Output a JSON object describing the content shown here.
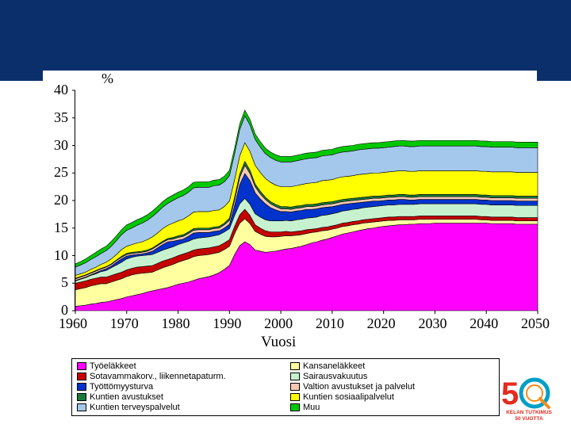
{
  "header": {
    "banner_color": "#0a2f6b"
  },
  "chart": {
    "type": "area-stacked",
    "y_unit": "%",
    "x_title": "Vuosi",
    "xlim": [
      1960,
      2050
    ],
    "ylim": [
      0,
      40
    ],
    "xtick_step": 10,
    "ytick_step": 5,
    "xticks": [
      1960,
      1970,
      1980,
      1990,
      2000,
      2010,
      2020,
      2030,
      2040,
      2050
    ],
    "yticks": [
      0,
      5,
      10,
      15,
      20,
      25,
      30,
      35,
      40
    ],
    "background_color": "#ffffff",
    "axis_color": "#000000",
    "tick_fontsize": 18,
    "series_order": [
      "tyoelakkeet",
      "kansanelakkeet",
      "sotavamma",
      "sairaus",
      "tyottomyys",
      "valtion",
      "kuntien_av",
      "kuntien_sos",
      "kuntien_terv",
      "muu"
    ],
    "series": {
      "tyoelakkeet": {
        "label": "Työeläkkeet",
        "color": "#ff00ff",
        "values": [
          0.8,
          0.9,
          1.0,
          1.2,
          1.3,
          1.5,
          1.6,
          1.8,
          2.0,
          2.2,
          2.5,
          2.7,
          2.9,
          3.1,
          3.4,
          3.6,
          3.8,
          4.0,
          4.2,
          4.5,
          4.8,
          5.0,
          5.2,
          5.5,
          5.8,
          6.0,
          6.2,
          6.5,
          6.9,
          7.5,
          8.2,
          10.2,
          11.8,
          12.5,
          12.0,
          11.0,
          10.8,
          10.6,
          10.7,
          10.8,
          11.0,
          11.2,
          11.3,
          11.5,
          11.7,
          12.0,
          12.3,
          12.5,
          12.8,
          13.0,
          13.3,
          13.6,
          13.9,
          14.1,
          14.3,
          14.5,
          14.7,
          14.9,
          15.0,
          15.2,
          15.3,
          15.4,
          15.5,
          15.6,
          15.6,
          15.7,
          15.7,
          15.8,
          15.8,
          15.8,
          15.9,
          15.9,
          15.9,
          15.9,
          15.9,
          15.9,
          15.9,
          15.9,
          15.9,
          15.9,
          15.9,
          15.8,
          15.8,
          15.8,
          15.8,
          15.8,
          15.7,
          15.7,
          15.7,
          15.7,
          15.7
        ]
      },
      "kansanelakkeet": {
        "label": "Kansaneläkkeet",
        "color": "#ffffa0",
        "values": [
          3.0,
          3.1,
          3.2,
          3.3,
          3.4,
          3.4,
          3.3,
          3.4,
          3.5,
          3.6,
          3.7,
          3.8,
          3.8,
          3.7,
          3.5,
          3.4,
          3.6,
          3.8,
          3.9,
          3.9,
          4.0,
          4.1,
          4.2,
          4.3,
          4.2,
          4.1,
          4.0,
          3.9,
          3.7,
          3.6,
          3.5,
          3.8,
          4.1,
          4.2,
          3.8,
          3.4,
          3.1,
          2.9,
          2.7,
          2.6,
          2.5,
          2.4,
          2.3,
          2.2,
          2.1,
          2.0,
          1.9,
          1.8,
          1.7,
          1.6,
          1.5,
          1.4,
          1.4,
          1.3,
          1.3,
          1.2,
          1.2,
          1.1,
          1.1,
          1.0,
          1.0,
          1.0,
          0.9,
          0.9,
          0.9,
          0.8,
          0.8,
          0.8,
          0.8,
          0.8,
          0.7,
          0.7,
          0.7,
          0.7,
          0.7,
          0.7,
          0.7,
          0.7,
          0.7,
          0.6,
          0.6,
          0.6,
          0.6,
          0.6,
          0.6,
          0.6,
          0.6,
          0.6,
          0.6,
          0.6,
          0.6
        ]
      },
      "sotavamma": {
        "label": "Sotavammakorv., liikennetapaturm.",
        "color": "#c40000",
        "values": [
          1.2,
          1.2,
          1.2,
          1.2,
          1.2,
          1.2,
          1.2,
          1.2,
          1.2,
          1.2,
          1.2,
          1.2,
          1.2,
          1.2,
          1.2,
          1.2,
          1.2,
          1.2,
          1.2,
          1.2,
          1.2,
          1.2,
          1.2,
          1.2,
          1.2,
          1.2,
          1.2,
          1.2,
          1.2,
          1.2,
          1.2,
          1.3,
          1.5,
          1.7,
          1.5,
          1.2,
          1.1,
          1.0,
          0.9,
          0.9,
          0.8,
          0.8,
          0.7,
          0.7,
          0.7,
          0.7,
          0.6,
          0.6,
          0.6,
          0.6,
          0.6,
          0.6,
          0.6,
          0.6,
          0.6,
          0.6,
          0.6,
          0.6,
          0.6,
          0.6,
          0.6,
          0.6,
          0.6,
          0.6,
          0.6,
          0.6,
          0.6,
          0.6,
          0.6,
          0.6,
          0.6,
          0.6,
          0.6,
          0.6,
          0.6,
          0.6,
          0.6,
          0.6,
          0.6,
          0.6,
          0.6,
          0.6,
          0.6,
          0.6,
          0.6,
          0.6,
          0.6,
          0.6,
          0.6,
          0.6,
          0.6
        ]
      },
      "sairaus": {
        "label": "Sairausvakuutus",
        "color": "#c7f2d0",
        "values": [
          0.4,
          0.5,
          0.6,
          0.7,
          0.8,
          1.0,
          1.2,
          1.4,
          1.6,
          1.8,
          2.0,
          2.0,
          2.0,
          2.0,
          2.0,
          2.0,
          2.0,
          2.0,
          2.0,
          2.0,
          2.0,
          2.0,
          2.0,
          2.0,
          2.0,
          2.0,
          2.0,
          2.0,
          2.0,
          2.0,
          2.0,
          2.0,
          2.0,
          2.0,
          2.0,
          2.0,
          2.0,
          2.0,
          2.0,
          2.0,
          2.0,
          2.0,
          2.0,
          2.1,
          2.1,
          2.1,
          2.1,
          2.1,
          2.2,
          2.2,
          2.2,
          2.2,
          2.2,
          2.2,
          2.2,
          2.2,
          2.2,
          2.2,
          2.2,
          2.2,
          2.2,
          2.2,
          2.2,
          2.2,
          2.2,
          2.2,
          2.2,
          2.2,
          2.2,
          2.2,
          2.2,
          2.2,
          2.2,
          2.2,
          2.2,
          2.2,
          2.2,
          2.2,
          2.2,
          2.2,
          2.2,
          2.2,
          2.2,
          2.2,
          2.2,
          2.2,
          2.2,
          2.2,
          2.2,
          2.2,
          2.2
        ]
      },
      "tyottomyys": {
        "label": "Työttömyysturva",
        "color": "#0033cc",
        "values": [
          0.1,
          0.1,
          0.1,
          0.1,
          0.2,
          0.2,
          0.3,
          0.3,
          0.5,
          0.6,
          0.5,
          0.4,
          0.3,
          0.3,
          0.4,
          0.6,
          0.8,
          1.0,
          1.2,
          1.0,
          0.8,
          0.7,
          0.9,
          1.1,
          1.0,
          0.9,
          0.8,
          0.8,
          0.7,
          0.7,
          0.8,
          1.8,
          3.5,
          4.5,
          4.3,
          3.8,
          3.3,
          2.9,
          2.4,
          2.0,
          1.7,
          1.6,
          1.6,
          1.6,
          1.6,
          1.6,
          1.5,
          1.5,
          1.4,
          1.4,
          1.3,
          1.3,
          1.2,
          1.2,
          1.1,
          1.1,
          1.0,
          1.0,
          1.0,
          0.9,
          0.9,
          0.9,
          0.9,
          0.9,
          0.9,
          0.8,
          0.8,
          0.8,
          0.8,
          0.8,
          0.8,
          0.8,
          0.8,
          0.8,
          0.8,
          0.8,
          0.8,
          0.8,
          0.8,
          0.8,
          0.8,
          0.8,
          0.8,
          0.8,
          0.8,
          0.8,
          0.8,
          0.8,
          0.8,
          0.8,
          0.8
        ]
      },
      "valtion": {
        "label": "Valtion avustukset ja palvelut",
        "color": "#f8c8b4",
        "values": [
          0.3,
          0.3,
          0.3,
          0.3,
          0.3,
          0.3,
          0.3,
          0.3,
          0.3,
          0.3,
          0.3,
          0.3,
          0.3,
          0.3,
          0.3,
          0.4,
          0.4,
          0.4,
          0.4,
          0.4,
          0.5,
          0.5,
          0.5,
          0.5,
          0.5,
          0.5,
          0.5,
          0.5,
          0.5,
          0.6,
          0.7,
          1.0,
          1.3,
          1.5,
          1.3,
          1.1,
          0.9,
          0.8,
          0.7,
          0.6,
          0.5,
          0.5,
          0.5,
          0.5,
          0.5,
          0.5,
          0.5,
          0.5,
          0.5,
          0.5,
          0.5,
          0.5,
          0.5,
          0.5,
          0.5,
          0.5,
          0.5,
          0.5,
          0.5,
          0.5,
          0.5,
          0.5,
          0.5,
          0.5,
          0.5,
          0.5,
          0.5,
          0.5,
          0.5,
          0.5,
          0.5,
          0.5,
          0.5,
          0.5,
          0.5,
          0.5,
          0.5,
          0.5,
          0.5,
          0.5,
          0.5,
          0.5,
          0.5,
          0.5,
          0.5,
          0.5,
          0.5,
          0.5,
          0.5,
          0.5,
          0.5
        ]
      },
      "kuntien_av": {
        "label": "Kuntien avustukset",
        "color": "#1a7a3a",
        "values": [
          0.1,
          0.1,
          0.1,
          0.1,
          0.1,
          0.1,
          0.1,
          0.1,
          0.1,
          0.2,
          0.2,
          0.2,
          0.2,
          0.2,
          0.2,
          0.2,
          0.2,
          0.2,
          0.2,
          0.3,
          0.3,
          0.3,
          0.3,
          0.3,
          0.3,
          0.3,
          0.3,
          0.3,
          0.3,
          0.3,
          0.4,
          0.5,
          0.6,
          0.7,
          0.6,
          0.5,
          0.5,
          0.4,
          0.4,
          0.4,
          0.4,
          0.4,
          0.4,
          0.4,
          0.4,
          0.4,
          0.4,
          0.4,
          0.4,
          0.4,
          0.4,
          0.4,
          0.4,
          0.4,
          0.4,
          0.4,
          0.4,
          0.4,
          0.4,
          0.4,
          0.4,
          0.4,
          0.4,
          0.4,
          0.4,
          0.4,
          0.4,
          0.4,
          0.4,
          0.4,
          0.4,
          0.4,
          0.4,
          0.4,
          0.4,
          0.4,
          0.4,
          0.4,
          0.4,
          0.4,
          0.4,
          0.4,
          0.4,
          0.4,
          0.4,
          0.4,
          0.4,
          0.4,
          0.4,
          0.4,
          0.4
        ]
      },
      "kuntien_sos": {
        "label": "Kuntien sosiaalipalvelut",
        "color": "#ffff00",
        "values": [
          0.5,
          0.5,
          0.5,
          0.6,
          0.6,
          0.7,
          0.8,
          0.9,
          1.0,
          1.2,
          1.3,
          1.4,
          1.6,
          1.7,
          1.9,
          2.0,
          2.1,
          2.3,
          2.4,
          2.6,
          2.7,
          2.8,
          2.9,
          3.0,
          3.0,
          3.0,
          3.0,
          3.0,
          3.0,
          3.0,
          3.1,
          3.2,
          3.3,
          3.4,
          3.4,
          3.4,
          3.4,
          3.4,
          3.5,
          3.5,
          3.6,
          3.6,
          3.7,
          3.7,
          3.8,
          3.8,
          3.9,
          3.9,
          4.0,
          4.0,
          4.0,
          4.1,
          4.1,
          4.1,
          4.1,
          4.2,
          4.2,
          4.2,
          4.2,
          4.2,
          4.2,
          4.2,
          4.3,
          4.3,
          4.3,
          4.3,
          4.3,
          4.3,
          4.3,
          4.3,
          4.3,
          4.3,
          4.3,
          4.3,
          4.3,
          4.3,
          4.3,
          4.3,
          4.3,
          4.3,
          4.3,
          4.3,
          4.3,
          4.3,
          4.3,
          4.3,
          4.3,
          4.3,
          4.3,
          4.3,
          4.3
        ]
      },
      "kuntien_terv": {
        "label": "Kuntien terveyspalvelut",
        "color": "#a4c8ec",
        "values": [
          1.5,
          1.6,
          1.7,
          1.8,
          1.9,
          2.0,
          2.1,
          2.3,
          2.5,
          2.7,
          2.9,
          3.0,
          3.2,
          3.4,
          3.5,
          3.7,
          3.8,
          3.9,
          4.0,
          4.1,
          4.2,
          4.3,
          4.3,
          4.4,
          4.4,
          4.4,
          4.4,
          4.5,
          4.5,
          4.5,
          4.6,
          4.7,
          4.8,
          4.9,
          4.8,
          4.7,
          4.6,
          4.5,
          4.5,
          4.5,
          4.5,
          4.5,
          4.5,
          4.5,
          4.5,
          4.5,
          4.5,
          4.5,
          4.5,
          4.5,
          4.5,
          4.5,
          4.5,
          4.5,
          4.5,
          4.5,
          4.5,
          4.5,
          4.5,
          4.5,
          4.5,
          4.5,
          4.5,
          4.5,
          4.5,
          4.5,
          4.5,
          4.5,
          4.5,
          4.5,
          4.5,
          4.5,
          4.5,
          4.5,
          4.5,
          4.5,
          4.5,
          4.5,
          4.5,
          4.5,
          4.5,
          4.5,
          4.5,
          4.5,
          4.5,
          4.5,
          4.5,
          4.5,
          4.5,
          4.5,
          4.5
        ]
      },
      "muu": {
        "label": "Muu",
        "color": "#00c800",
        "values": [
          0.6,
          0.6,
          0.7,
          0.7,
          0.8,
          0.8,
          0.8,
          0.9,
          0.9,
          0.9,
          1.0,
          1.0,
          1.0,
          1.0,
          1.0,
          1.0,
          1.0,
          1.0,
          1.0,
          1.0,
          1.0,
          1.0,
          1.0,
          1.0,
          1.0,
          1.0,
          1.0,
          1.0,
          1.0,
          1.0,
          1.0,
          1.0,
          1.0,
          1.0,
          1.0,
          1.0,
          1.0,
          1.0,
          1.0,
          1.0,
          1.0,
          1.0,
          1.0,
          1.0,
          1.0,
          1.0,
          1.0,
          1.0,
          1.0,
          1.0,
          1.0,
          1.0,
          1.0,
          1.0,
          1.0,
          1.0,
          1.0,
          1.0,
          1.0,
          1.0,
          1.0,
          1.0,
          1.0,
          1.0,
          1.0,
          1.0,
          1.0,
          1.0,
          1.0,
          1.0,
          1.0,
          1.0,
          1.0,
          1.0,
          1.0,
          1.0,
          1.0,
          1.0,
          1.0,
          1.0,
          1.0,
          1.0,
          1.0,
          1.0,
          1.0,
          1.0,
          1.0,
          1.0,
          1.0,
          1.0,
          1.0
        ]
      }
    }
  },
  "legend": {
    "items": [
      {
        "key": "tyoelakkeet",
        "col": 0
      },
      {
        "key": "kansanelakkeet",
        "col": 1
      },
      {
        "key": "sotavamma",
        "col": 0
      },
      {
        "key": "sairaus",
        "col": 1
      },
      {
        "key": "tyottomyys",
        "col": 0
      },
      {
        "key": "valtion",
        "col": 1
      },
      {
        "key": "kuntien_av",
        "col": 0
      },
      {
        "key": "kuntien_sos",
        "col": 1
      },
      {
        "key": "kuntien_terv",
        "col": 0
      },
      {
        "key": "muu",
        "col": 1
      }
    ]
  },
  "logo": {
    "text_line1": "KELAN TUTKIMUS",
    "text_line2": "50 VUOTTA",
    "five_color": "#e52b1e",
    "zero_color": "#009fc7",
    "glass_color": "#f48c1a",
    "text_color": "#e52b1e"
  }
}
